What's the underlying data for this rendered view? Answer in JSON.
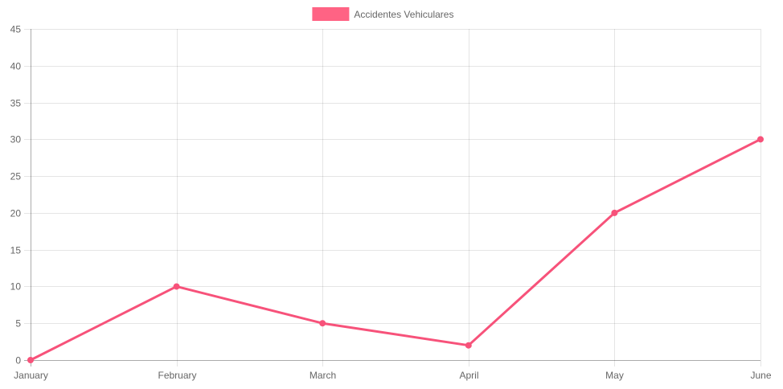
{
  "chart_data": {
    "type": "line",
    "categories": [
      "January",
      "February",
      "March",
      "April",
      "May",
      "June"
    ],
    "series": [
      {
        "name": "Accidentes Vehiculares",
        "values": [
          0,
          10,
          5,
          2,
          20,
          30
        ],
        "color": "#ff6384",
        "line_color": "#f7527a"
      }
    ],
    "title": "",
    "xlabel": "",
    "ylabel": "",
    "ylim": [
      0,
      45
    ],
    "yticks": [
      0,
      5,
      10,
      15,
      20,
      25,
      30,
      35,
      40,
      45
    ],
    "grid": true,
    "legend_position": "top"
  }
}
